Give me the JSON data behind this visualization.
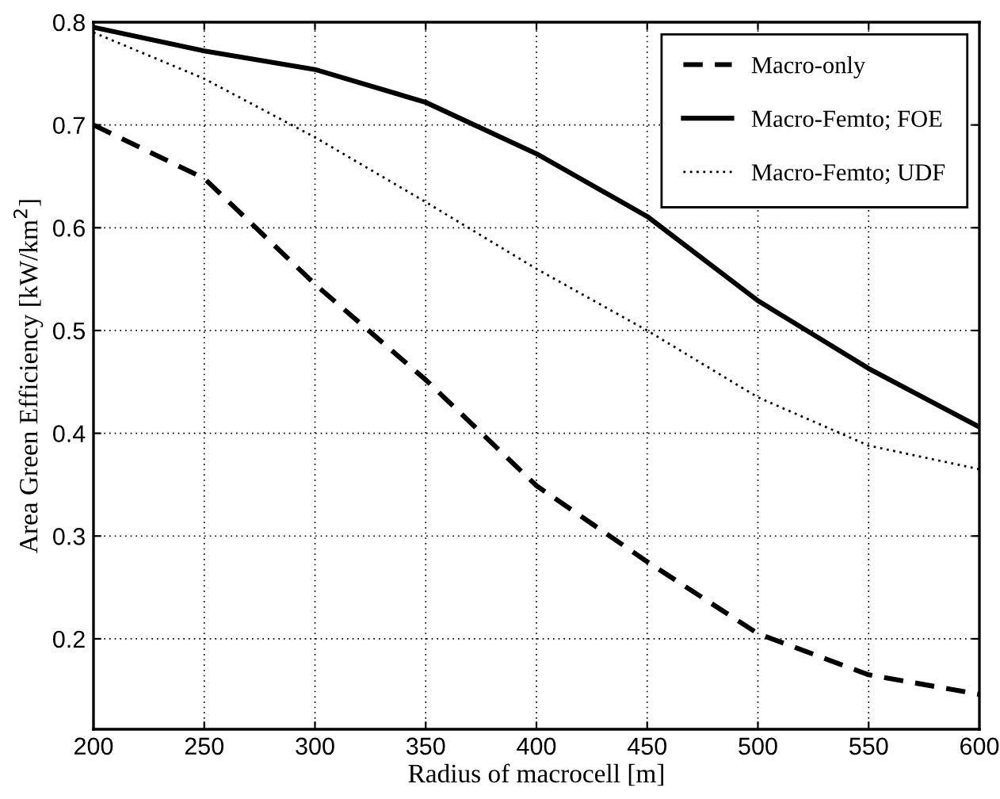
{
  "chart_data": {
    "type": "line",
    "xlabel": "Radius of macrocell [m]",
    "ylabel": "Area Green Efficiency [kW/km$^{2}$]",
    "x": [
      200,
      250,
      300,
      350,
      400,
      450,
      500,
      550,
      600
    ],
    "series": [
      {
        "name": "Macro-only",
        "color": "#000000",
        "line_style": "dashed",
        "values": [
          0.7,
          0.648,
          0.545,
          0.452,
          0.349,
          0.275,
          0.205,
          0.165,
          0.146
        ]
      },
      {
        "name": "Macro-Femto; FOE",
        "color": "#000000",
        "line_style": "solid",
        "values": [
          0.795,
          0.772,
          0.754,
          0.722,
          0.672,
          0.611,
          0.529,
          0.463,
          0.406
        ]
      },
      {
        "name": "Macro-Femto; UDF",
        "color": "#000000",
        "line_style": "dotted",
        "values": [
          0.79,
          0.745,
          0.688,
          0.625,
          0.56,
          0.5,
          0.435,
          0.388,
          0.365
        ]
      }
    ],
    "xlim": [
      200,
      600
    ],
    "ylim": [
      0.112,
      0.8
    ],
    "xticks": [
      200,
      250,
      300,
      350,
      400,
      450,
      500,
      550,
      600
    ],
    "yticks": [
      0.2,
      0.3,
      0.4,
      0.5,
      0.6,
      0.7,
      0.8
    ],
    "grid": true,
    "legend": "top right",
    "marker": "none"
  }
}
